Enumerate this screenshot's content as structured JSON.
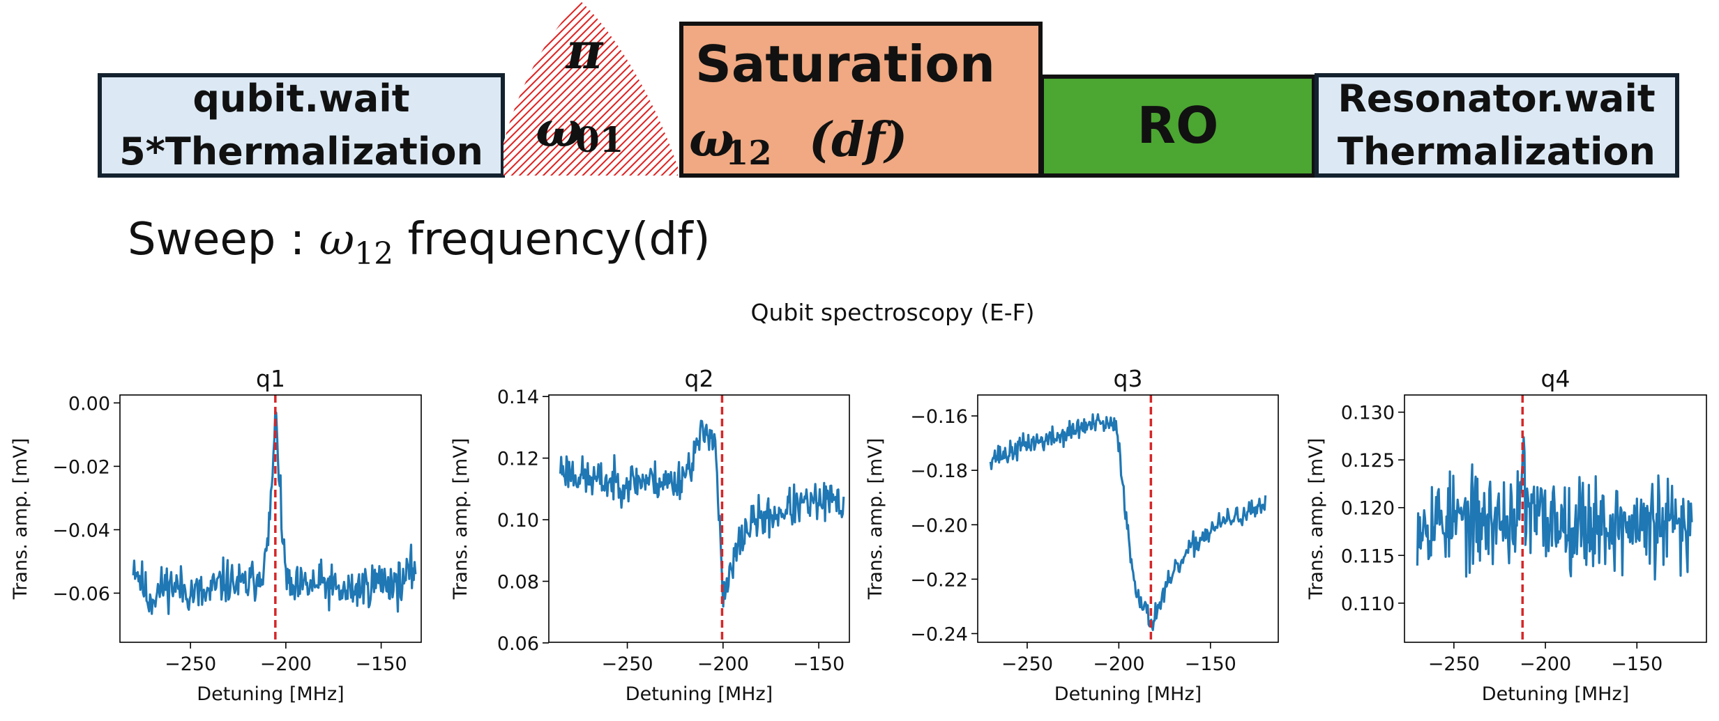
{
  "colors": {
    "block_light": "#dce9f5",
    "block_saturation": "#f0a982",
    "block_ro": "#4ca632",
    "pulse_hatch": "#e02020",
    "series": "#1f77b4",
    "marker": "#d62728"
  },
  "pulse_sequence": {
    "qubit_wait": {
      "line1": "qubit.wait",
      "line2": "5*Thermalization"
    },
    "pi_pulse": {
      "symbol": "π",
      "freq_symbol": "ω",
      "freq_sub": "01"
    },
    "saturation": {
      "label": "Saturation",
      "freq_symbol": "ω",
      "freq_sub": "12",
      "paren": "(df)"
    },
    "readout": {
      "label": "RO"
    },
    "resonator_wait": {
      "line1": "Resonator.wait",
      "line2": "Thermalization"
    }
  },
  "sweep": {
    "prefix": "Sweep : ",
    "symbol": "ω",
    "sub": "12",
    "suffix": " frequency(df)"
  },
  "figure_title": "Qubit spectroscopy (E-F)",
  "chart_data": [
    {
      "type": "line",
      "title": "q1",
      "xlabel": "Detuning [MHz]",
      "ylabel": "Trans. amp. [mV]",
      "xlim": [
        -287,
        -129
      ],
      "ylim": [
        -0.0755,
        0.0025
      ],
      "xticks": [
        -250,
        -200,
        -150
      ],
      "yticks": [
        0.0,
        -0.02,
        -0.04,
        -0.06
      ],
      "ytick_labels": [
        "0.00",
        "−0.02",
        "−0.04",
        "−0.06"
      ],
      "vline": -205.5,
      "x_range": [
        -280,
        -132
      ],
      "points": [
        [
          -280,
          -0.05
        ],
        [
          -272,
          -0.062
        ],
        [
          -262,
          -0.057
        ],
        [
          -252,
          -0.059
        ],
        [
          -242,
          -0.061
        ],
        [
          -232,
          -0.056
        ],
        [
          -222,
          -0.058
        ],
        [
          -215,
          -0.055
        ],
        [
          -210,
          -0.049
        ],
        [
          -208,
          -0.032
        ],
        [
          -206,
          -0.014
        ],
        [
          -205,
          -0.001
        ],
        [
          -204,
          -0.016
        ],
        [
          -202,
          -0.043
        ],
        [
          -198,
          -0.06
        ],
        [
          -190,
          -0.058
        ],
        [
          -180,
          -0.057
        ],
        [
          -170,
          -0.06
        ],
        [
          -160,
          -0.058
        ],
        [
          -150,
          -0.056
        ],
        [
          -140,
          -0.057
        ],
        [
          -132,
          -0.052
        ]
      ],
      "noise": 0.006,
      "seed": 11
    },
    {
      "type": "line",
      "title": "q2",
      "xlabel": "Detuning [MHz]",
      "ylabel": "Trans. amp. [mV]",
      "xlim": [
        -291,
        -134
      ],
      "ylim": [
        0.0602,
        0.1405
      ],
      "xticks": [
        -250,
        -200,
        -150
      ],
      "yticks": [
        0.14,
        0.12,
        0.1,
        0.08,
        0.06
      ],
      "ytick_labels": [
        "0.14",
        "0.12",
        "0.10",
        "0.08",
        "0.06"
      ],
      "vline": -200.5,
      "x_range": [
        -285,
        -137
      ],
      "points": [
        [
          -285,
          0.117
        ],
        [
          -270,
          0.113
        ],
        [
          -255,
          0.112
        ],
        [
          -240,
          0.113
        ],
        [
          -225,
          0.112
        ],
        [
          -218,
          0.117
        ],
        [
          -212,
          0.126
        ],
        [
          -207,
          0.13
        ],
        [
          -204,
          0.125
        ],
        [
          -202,
          0.1
        ],
        [
          -200,
          0.073
        ],
        [
          -197,
          0.08
        ],
        [
          -194,
          0.087
        ],
        [
          -190,
          0.095
        ],
        [
          -183,
          0.1
        ],
        [
          -175,
          0.101
        ],
        [
          -165,
          0.104
        ],
        [
          -155,
          0.105
        ],
        [
          -145,
          0.106
        ],
        [
          -137,
          0.105
        ]
      ],
      "noise": 0.0055,
      "seed": 23
    },
    {
      "type": "line",
      "title": "q3",
      "xlabel": "Detuning [MHz]",
      "ylabel": "Trans. amp. [mV]",
      "xlim": [
        -277,
        -113
      ],
      "ylim": [
        -0.2432,
        -0.1523
      ],
      "xticks": [
        -250,
        -200,
        -150
      ],
      "yticks": [
        -0.16,
        -0.18,
        -0.2,
        -0.22,
        -0.24
      ],
      "ytick_labels": [
        "−0.16",
        "−0.18",
        "−0.20",
        "−0.22",
        "−0.24"
      ],
      "vline": -182.5,
      "x_range": [
        -270,
        -120
      ],
      "points": [
        [
          -270,
          -0.175
        ],
        [
          -260,
          -0.174
        ],
        [
          -250,
          -0.17
        ],
        [
          -240,
          -0.169
        ],
        [
          -230,
          -0.167
        ],
        [
          -220,
          -0.164
        ],
        [
          -210,
          -0.163
        ],
        [
          -202,
          -0.164
        ],
        [
          -200,
          -0.17
        ],
        [
          -197,
          -0.19
        ],
        [
          -194,
          -0.21
        ],
        [
          -191,
          -0.222
        ],
        [
          -187,
          -0.229
        ],
        [
          -184,
          -0.234
        ],
        [
          -182,
          -0.236
        ],
        [
          -179,
          -0.231
        ],
        [
          -175,
          -0.225
        ],
        [
          -170,
          -0.218
        ],
        [
          -160,
          -0.208
        ],
        [
          -150,
          -0.202
        ],
        [
          -140,
          -0.198
        ],
        [
          -130,
          -0.196
        ],
        [
          -120,
          -0.194
        ]
      ],
      "noise": 0.0035,
      "seed": 37
    },
    {
      "type": "line",
      "title": "q4",
      "xlabel": "Detuning [MHz]",
      "ylabel": "Trans. amp. [mV]",
      "xlim": [
        -277,
        -112
      ],
      "ylim": [
        0.1059,
        0.1318
      ],
      "xticks": [
        -250,
        -200,
        -150
      ],
      "yticks": [
        0.13,
        0.125,
        0.12,
        0.115,
        0.11
      ],
      "ytick_labels": [
        "0.130",
        "0.125",
        "0.120",
        "0.115",
        "0.110"
      ],
      "vline": -212.5,
      "x_range": [
        -270,
        -120
      ],
      "points": [
        [
          -270,
          0.119
        ],
        [
          -240,
          0.1185
        ],
        [
          -213,
          0.119
        ],
        [
          -212,
          0.131
        ],
        [
          -211,
          0.119
        ],
        [
          -180,
          0.1185
        ],
        [
          -150,
          0.118
        ],
        [
          -120,
          0.118
        ]
      ],
      "noise": 0.0042,
      "seed": 53
    }
  ]
}
